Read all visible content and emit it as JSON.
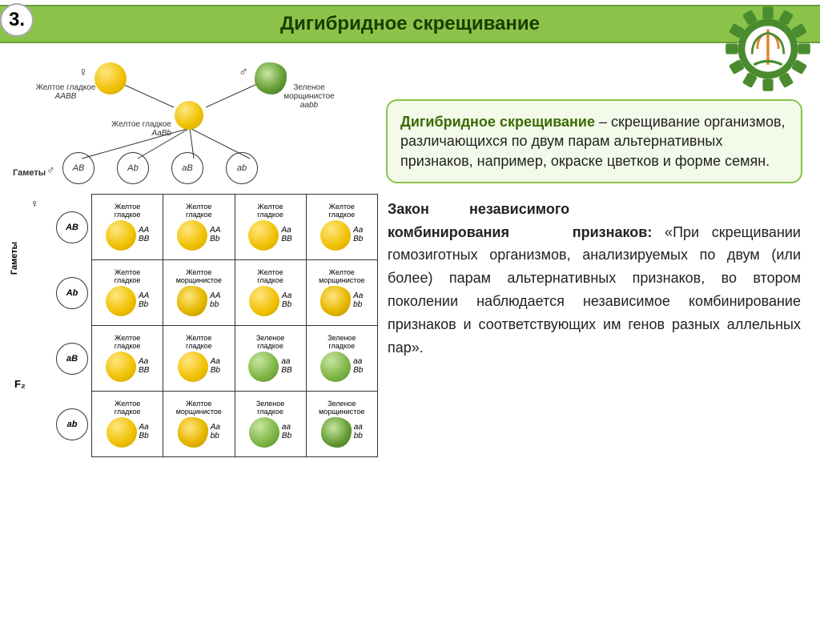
{
  "header": {
    "number": "3.",
    "title": "Дигибридное скрещивание"
  },
  "definition": {
    "term": "Дигибридное скрещивание",
    "rest": " – скрещивание организмов, различающихся по двум парам альтернативных признаков, например, окраске цветков и форме семян."
  },
  "law": {
    "title_a": "Закон",
    "title_b": "независимого",
    "title_c": "комбинирования",
    "title_d": "признаков:",
    "body": " «При скрещивании гомозиготных организмов, анализируемых по двум (или более) парам альтернативных признаков, во втором поколении наблюдается независимое комбинирование признаков и соответствующих им генов разных аллельных пар»."
  },
  "parents": {
    "female_sym": "♀",
    "male_sym": "♂",
    "p1_name": "Желтое гладкое",
    "p1_geno": "AABB",
    "p2_name": "Зеленое морщинистое",
    "p2_geno": "aabb",
    "f1_name": "Желтое гладкое",
    "f1_geno": "AaBb",
    "gametes_label": "Гаметы",
    "gametes": [
      "AB",
      "Ab",
      "aB",
      "ab"
    ],
    "axis_top": "♂",
    "axis_left": "♀",
    "f2": "F₂"
  },
  "punnett": {
    "col_gametes": [
      "AB",
      "Ab",
      "aB",
      "ab"
    ],
    "row_gametes": [
      "AB",
      "Ab",
      "aB",
      "ab"
    ],
    "cells": [
      [
        {
          "lbl": "Желтое гладкое",
          "type": "smooth-y",
          "g1": "AA",
          "g2": "BB"
        },
        {
          "lbl": "Желтое гладкое",
          "type": "smooth-y",
          "g1": "AA",
          "g2": "Bb"
        },
        {
          "lbl": "Желтое гладкое",
          "type": "smooth-y",
          "g1": "Aa",
          "g2": "BB"
        },
        {
          "lbl": "Желтое гладкое",
          "type": "smooth-y",
          "g1": "Aa",
          "g2": "Bb"
        }
      ],
      [
        {
          "lbl": "Желтое гладкое",
          "type": "smooth-y",
          "g1": "AA",
          "g2": "Bb"
        },
        {
          "lbl": "Желтое морщинистое",
          "type": "wrink-y",
          "g1": "AA",
          "g2": "bb"
        },
        {
          "lbl": "Желтое гладкое",
          "type": "smooth-y",
          "g1": "Aa",
          "g2": "Bb"
        },
        {
          "lbl": "Желтое морщинистое",
          "type": "wrink-y",
          "g1": "Aa",
          "g2": "bb"
        }
      ],
      [
        {
          "lbl": "Желтое гладкое",
          "type": "smooth-y",
          "g1": "Aa",
          "g2": "BB"
        },
        {
          "lbl": "Желтое гладкое",
          "type": "smooth-y",
          "g1": "Aa",
          "g2": "Bb"
        },
        {
          "lbl": "Зеленое гладкое",
          "type": "smooth-g",
          "g1": "aa",
          "g2": "BB"
        },
        {
          "lbl": "Зеленое гладкое",
          "type": "smooth-g",
          "g1": "aa",
          "g2": "Bb"
        }
      ],
      [
        {
          "lbl": "Желтое гладкое",
          "type": "smooth-y",
          "g1": "Aa",
          "g2": "Bb"
        },
        {
          "lbl": "Желтое морщинистое",
          "type": "wrink-y",
          "g1": "Aa",
          "g2": "bb"
        },
        {
          "lbl": "Зеленое гладкое",
          "type": "smooth-g",
          "g1": "aa",
          "g2": "Bb"
        },
        {
          "lbl": "Зеленое морщинистое",
          "type": "wrink-g",
          "g1": "aa",
          "g2": "bb"
        }
      ]
    ]
  },
  "colors": {
    "header_bg": "#8bc34a",
    "header_border": "#689f38",
    "def_bg": "#f3faea",
    "def_border": "#8bc34a",
    "gear_green": "#4a8b2f",
    "gear_orange": "#e67e22"
  }
}
